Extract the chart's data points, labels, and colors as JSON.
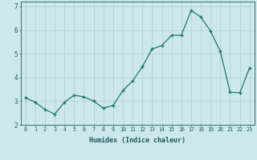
{
  "xlabel": "Humidex (Indice chaleur)",
  "ylabel": "",
  "x": [
    0,
    1,
    2,
    3,
    4,
    5,
    6,
    7,
    8,
    9,
    10,
    11,
    12,
    13,
    14,
    15,
    16,
    17,
    18,
    19,
    20,
    21,
    22,
    23
  ],
  "y": [
    3.15,
    2.95,
    2.65,
    2.45,
    2.95,
    3.25,
    3.18,
    3.0,
    2.7,
    2.82,
    3.45,
    3.85,
    4.45,
    5.2,
    5.35,
    5.78,
    5.78,
    6.82,
    6.55,
    5.95,
    5.1,
    3.38,
    3.35,
    4.4
  ],
  "ylim": [
    2.0,
    7.2
  ],
  "xlim": [
    -0.5,
    23.5
  ],
  "yticks": [
    2,
    3,
    4,
    5,
    6,
    7
  ],
  "xticks": [
    0,
    1,
    2,
    3,
    4,
    5,
    6,
    7,
    8,
    9,
    10,
    11,
    12,
    13,
    14,
    15,
    16,
    17,
    18,
    19,
    20,
    21,
    22,
    23
  ],
  "line_color": "#1a7a6a",
  "marker": "+",
  "bg_color": "#cde8ec",
  "grid_color": "#b0cdd0",
  "tick_color": "#1a5a5a",
  "label_color": "#1a5a5a",
  "xlabel_fontsize": 6.0,
  "tick_fontsize_x": 4.8,
  "tick_fontsize_y": 5.5
}
